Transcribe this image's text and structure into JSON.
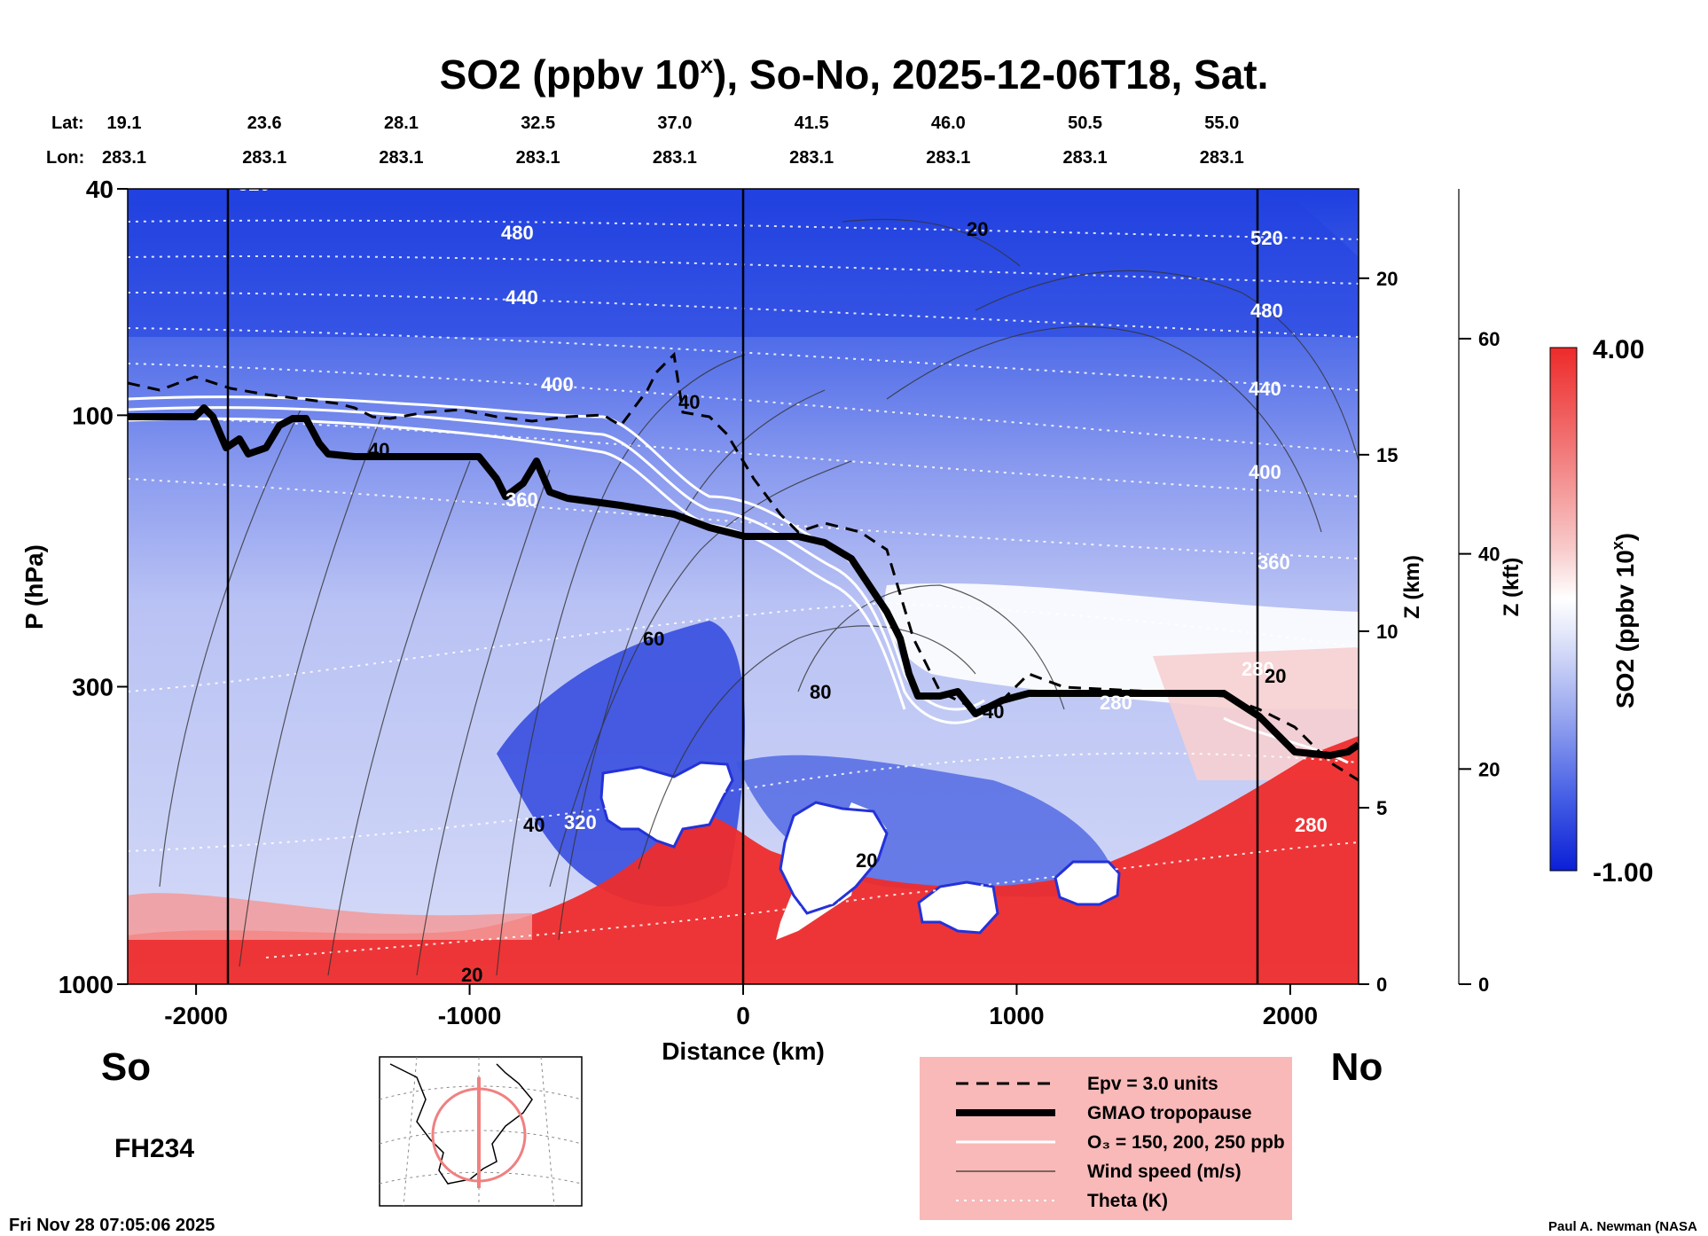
{
  "chart_data": {
    "type": "heatmap",
    "title": "SO2 (ppbv 10",
    "title_sup": "x",
    "title_rest": "), So-No, 2025-12-06T18, Sat.",
    "xlabel": "Distance (km)",
    "ylabel": "P (hPa)",
    "z_km_label": "Z (km)",
    "z_kft_label": "Z (kft)",
    "xlim": [
      -2250,
      2250
    ],
    "ylim_hpa": [
      1000,
      40
    ],
    "x_ticks": [
      -2000,
      -1000,
      0,
      1000,
      2000
    ],
    "x_tick_labels": [
      "-2000",
      "-1000",
      "0",
      "1000",
      "2000"
    ],
    "p_ticks": [
      40,
      100,
      300,
      1000
    ],
    "p_tick_labels": [
      "40",
      "100",
      "300",
      "1000"
    ],
    "z_km_ticks": [
      0,
      5,
      10,
      15,
      20
    ],
    "z_km_tick_labels": [
      "0",
      "5",
      "10",
      "15",
      "20"
    ],
    "z_kft_ticks": [
      0,
      20,
      40,
      60
    ],
    "z_kft_tick_labels": [
      "0",
      "20",
      "40",
      "60"
    ],
    "lat_label": "Lat:",
    "lon_label": "Lon:",
    "lat_values": [
      "19.1",
      "23.6",
      "28.1",
      "32.5",
      "37.0",
      "41.5",
      "46.0",
      "50.5",
      "55.0"
    ],
    "lon_values": [
      "283.1",
      "283.1",
      "283.1",
      "283.1",
      "283.1",
      "283.1",
      "283.1",
      "283.1",
      "283.1"
    ],
    "station_x_km": [
      -2250,
      -1750,
      -1250,
      -750,
      -250,
      250,
      750,
      1250,
      1750
    ],
    "south_label": "So",
    "north_label": "No",
    "forecast_hour": "FH234",
    "timestamp": "Fri Nov 28 07:05:06 2025",
    "credit": "Paul A. Newman (NASA",
    "colorbar": {
      "label": "SO2 (ppbv 10",
      "label_sup": "x",
      "label_end": ")",
      "max_label": "4.00",
      "min_label": "-1.00",
      "min": -1.0,
      "max": 4.0,
      "colors": [
        "#0b1fd6",
        "#4a63e6",
        "#9aa8ef",
        "#e2e6fa",
        "#ffffff",
        "#f8c8c8",
        "#f27a7a",
        "#ee2a2a"
      ]
    },
    "theta_labels": [
      "520",
      "480",
      "440",
      "400",
      "360",
      "320",
      "280",
      "520",
      "480",
      "440",
      "400",
      "360",
      "280",
      "280"
    ],
    "wind_labels": [
      "20",
      "40",
      "40",
      "60",
      "80",
      "40",
      "20",
      "20",
      "40",
      "20"
    ],
    "legend": [
      {
        "label": "Epv = 3.0 units",
        "style": "dashed"
      },
      {
        "label": "GMAO tropopause",
        "style": "thick"
      },
      {
        "label": "O₃ = 150, 200, 250 ppb",
        "style": "white"
      },
      {
        "label": "Wind speed (m/s)",
        "style": "thin"
      },
      {
        "label": "Theta (K)",
        "style": "dotted"
      }
    ]
  }
}
